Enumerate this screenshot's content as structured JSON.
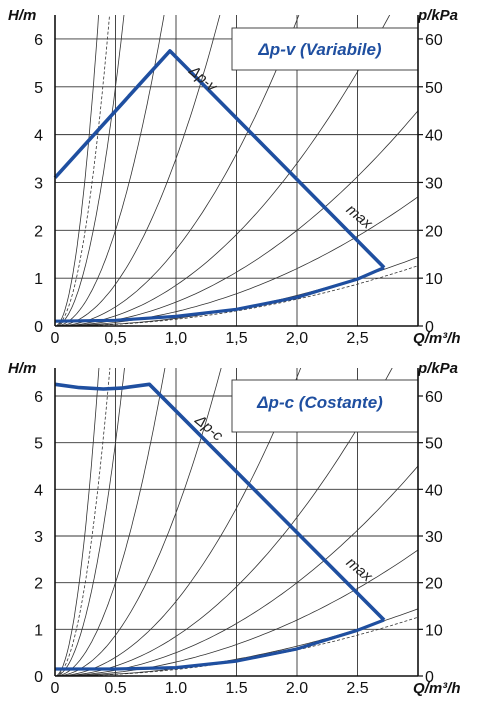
{
  "chart_data": [
    {
      "type": "line",
      "title": "Δp-v (Variabile)",
      "xlabel": "Q/m³/h",
      "ylabel": "H/m",
      "y2label": "p/kPa",
      "xlim": [
        0,
        3.0
      ],
      "ylim": [
        0,
        6.5
      ],
      "y2lim": [
        0,
        65
      ],
      "x_ticks": [
        "0",
        "0,5",
        "1,0",
        "1,5",
        "2,0",
        "2,5"
      ],
      "x_tick_values": [
        0,
        0.5,
        1.0,
        1.5,
        2.0,
        2.5
      ],
      "y_ticks": [
        "0",
        "1",
        "2",
        "3",
        "4",
        "5",
        "6"
      ],
      "y2_ticks": [
        "0",
        "10",
        "20",
        "30",
        "40",
        "50",
        "60"
      ],
      "grid": true,
      "series": [
        {
          "name": "Δp-v",
          "x": [
            0,
            0.95,
            2.72
          ],
          "y": [
            3.1,
            5.75,
            1.22
          ]
        },
        {
          "name": "max",
          "x": [
            0.95,
            2.72
          ],
          "y": [
            5.75,
            1.22
          ]
        }
      ],
      "lower_bound": {
        "x": [
          0,
          0.5,
          1.0,
          1.5,
          2.0,
          2.5,
          2.72
        ],
        "y": [
          0.1,
          0.12,
          0.2,
          0.35,
          0.6,
          0.98,
          1.22
        ]
      },
      "system_curve_k": [
        50,
        20,
        8,
        3.5,
        1.6,
        0.85,
        0.5,
        0.3,
        0.16
      ],
      "dashed_system_k": [
        0.14
      ],
      "annotations": [
        {
          "text": "Δp-v",
          "x": 1.1,
          "y": 5.3
        },
        {
          "text": "max",
          "x": 2.4,
          "y": 2.4
        }
      ]
    },
    {
      "type": "line",
      "title": "Δp-c (Costante)",
      "xlabel": "Q/m³/h",
      "ylabel": "H/m",
      "y2label": "p/kPa",
      "xlim": [
        0,
        3.0
      ],
      "ylim": [
        0,
        6.6
      ],
      "y2lim": [
        0,
        66
      ],
      "x_ticks": [
        "0",
        "0.5",
        "1.0",
        "1.5",
        "2.0",
        "2.5"
      ],
      "x_tick_values": [
        0,
        0.5,
        1.0,
        1.5,
        2.0,
        2.5
      ],
      "y_ticks": [
        "0",
        "1",
        "2",
        "3",
        "4",
        "5",
        "6"
      ],
      "y2_ticks": [
        "0",
        "10",
        "20",
        "30",
        "40",
        "50",
        "60"
      ],
      "grid": true,
      "series": [
        {
          "name": "Δp-c",
          "x": [
            0,
            0.2,
            0.4,
            0.55,
            0.78,
            2.72
          ],
          "y": [
            6.25,
            6.18,
            6.15,
            6.17,
            6.25,
            1.2
          ]
        },
        {
          "name": "max",
          "x": [
            0.78,
            2.72
          ],
          "y": [
            6.25,
            1.2
          ]
        }
      ],
      "lower_bound": {
        "x": [
          0,
          0.5,
          1.0,
          1.5,
          2.0,
          2.5,
          2.72
        ],
        "y": [
          0.15,
          0.15,
          0.18,
          0.32,
          0.58,
          0.98,
          1.2
        ]
      },
      "system_curve_k": [
        50,
        20,
        8,
        3.5,
        1.6,
        0.85,
        0.5,
        0.3,
        0.16
      ],
      "dashed_system_k": [
        0.14
      ],
      "annotations": [
        {
          "text": "Δp-c",
          "x": 1.15,
          "y": 5.45
        },
        {
          "text": "max",
          "x": 2.4,
          "y": 2.4
        }
      ]
    }
  ]
}
